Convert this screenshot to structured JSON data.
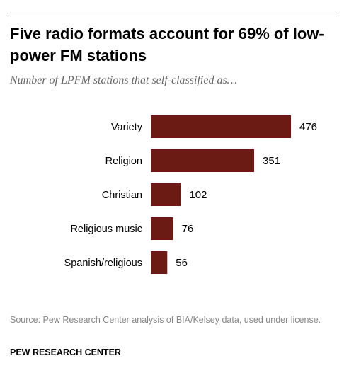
{
  "title": "Five radio formats account for 69% of low-power FM stations",
  "subtitle": "Number of LPFM stations that self-classified as…",
  "source": "Source: Pew Research Center analysis of BIA/Kelsey data, used under license.",
  "organization": "PEW RESEARCH CENTER",
  "colors": {
    "bar": "#6b1a14"
  },
  "chart_data": {
    "type": "bar",
    "orientation": "horizontal",
    "categories": [
      "Variety",
      "Religion",
      "Christian",
      "Religious music",
      "Spanish/religious"
    ],
    "values": [
      476,
      351,
      102,
      76,
      56
    ],
    "title": "Five radio formats account for 69% of low-power FM stations",
    "subtitle": "Number of LPFM stations that self-classified as…",
    "xlabel": "",
    "ylabel": "",
    "grid": false,
    "legend": "none"
  }
}
